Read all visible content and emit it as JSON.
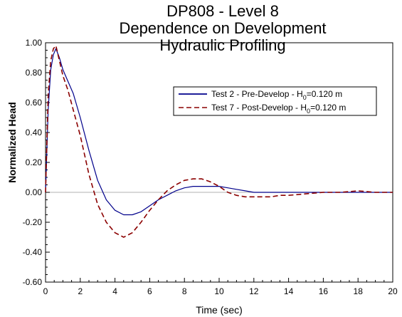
{
  "chart_data": {
    "type": "line",
    "title_lines": [
      "DP808 - Level 8",
      "Dependence on Development",
      "Hydraulic Profiling"
    ],
    "xlabel": "Time (sec)",
    "ylabel": "Normalized Head",
    "xlim": [
      0,
      20
    ],
    "ylim": [
      -0.6,
      1.0
    ],
    "x_ticks": [
      0,
      2,
      4,
      6,
      8,
      10,
      12,
      14,
      16,
      18,
      20
    ],
    "x_tick_labels": [
      "0",
      "2",
      "4",
      "6",
      "8",
      "10",
      "12",
      "14",
      "16",
      "18",
      "20"
    ],
    "y_ticks": [
      -0.6,
      -0.4,
      -0.2,
      0.0,
      0.2,
      0.4,
      0.6,
      0.8,
      1.0
    ],
    "y_tick_labels": [
      "-0.60",
      "-0.40",
      "-0.20",
      "0.00",
      "0.20",
      "0.40",
      "0.60",
      "0.80",
      "1.00"
    ],
    "grid": false,
    "legend_position": "upper-right",
    "series": [
      {
        "name": "Test 2 - Pre-Develop - H₀=0.120 m",
        "legend_prefix": "Test 2 - Pre-Develop - H",
        "legend_sub": "0",
        "legend_suffix": "=0.120 m",
        "color": "#00008B",
        "dash": "solid",
        "x": [
          0,
          0.15,
          0.3,
          0.45,
          0.6,
          0.8,
          1.0,
          1.3,
          1.6,
          2.0,
          2.5,
          3.0,
          3.5,
          4.0,
          4.5,
          5.0,
          5.5,
          6.0,
          6.5,
          7.0,
          7.5,
          8.0,
          8.5,
          9.0,
          9.5,
          10.0,
          10.5,
          11.0,
          11.5,
          12.0,
          13.0,
          14.0,
          15.0,
          16.0,
          17.0,
          18.0,
          19.0,
          20.0
        ],
        "y": [
          0.0,
          0.55,
          0.82,
          0.92,
          0.96,
          0.9,
          0.82,
          0.74,
          0.66,
          0.5,
          0.28,
          0.08,
          -0.05,
          -0.12,
          -0.15,
          -0.15,
          -0.13,
          -0.09,
          -0.05,
          -0.02,
          0.01,
          0.03,
          0.04,
          0.04,
          0.04,
          0.04,
          0.03,
          0.02,
          0.01,
          0.0,
          0.0,
          0.0,
          0.0,
          0.0,
          0.0,
          0.0,
          0.0,
          0.0
        ]
      },
      {
        "name": "Test 7 - Post-Develop - H₀=0.120 m",
        "legend_prefix": "Test 7 - Post-Develop - H",
        "legend_sub": "0",
        "legend_suffix": "=0.120 m",
        "color": "#8B0000",
        "dash": "dashed",
        "x": [
          0,
          0.15,
          0.3,
          0.45,
          0.6,
          0.8,
          1.0,
          1.3,
          1.6,
          2.0,
          2.5,
          3.0,
          3.5,
          4.0,
          4.5,
          5.0,
          5.5,
          6.0,
          6.5,
          7.0,
          7.5,
          8.0,
          8.5,
          9.0,
          9.5,
          10.0,
          10.5,
          11.0,
          11.5,
          12.0,
          12.5,
          13.0,
          13.5,
          14.0,
          15.0,
          16.0,
          17.0,
          18.0,
          19.0,
          20.0
        ],
        "y": [
          0.0,
          0.65,
          0.88,
          0.96,
          0.98,
          0.88,
          0.78,
          0.68,
          0.55,
          0.38,
          0.12,
          -0.08,
          -0.2,
          -0.27,
          -0.3,
          -0.27,
          -0.2,
          -0.12,
          -0.05,
          0.01,
          0.05,
          0.08,
          0.09,
          0.09,
          0.07,
          0.04,
          0.0,
          -0.02,
          -0.03,
          -0.03,
          -0.03,
          -0.03,
          -0.02,
          -0.02,
          -0.01,
          0.0,
          0.0,
          0.01,
          0.0,
          0.0
        ]
      }
    ]
  }
}
